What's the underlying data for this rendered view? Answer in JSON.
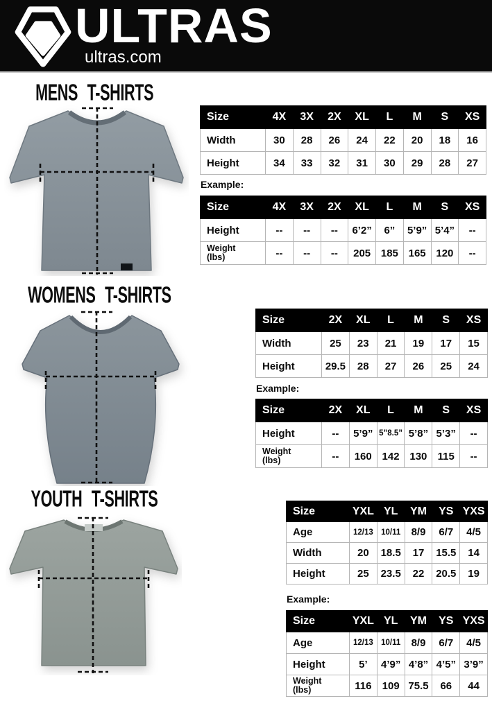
{
  "header": {
    "brand": "ULTRAS",
    "site": "ultras.com",
    "logo_icon": "pentagon-crest-icon"
  },
  "sections": [
    {
      "id": "mens",
      "title": "MENS T-SHIRTS",
      "example_label": "Example:",
      "size_table": {
        "headers": [
          "Size",
          "4X",
          "3X",
          "2X",
          "XL",
          "L",
          "M",
          "S",
          "XS"
        ],
        "rows": [
          [
            "Width",
            "30",
            "28",
            "26",
            "24",
            "22",
            "20",
            "18",
            "16"
          ],
          [
            "Height",
            "34",
            "33",
            "32",
            "31",
            "30",
            "29",
            "28",
            "27"
          ]
        ]
      },
      "example_table": {
        "headers": [
          "Size",
          "4X",
          "3X",
          "2X",
          "XL",
          "L",
          "M",
          "S",
          "XS"
        ],
        "rows": [
          [
            "Height",
            "--",
            "--",
            "--",
            "6’2”",
            "6”",
            "5’9”",
            "5’4”",
            "--"
          ],
          [
            "Weight\n(lbs)",
            "--",
            "--",
            "--",
            "205",
            "185",
            "165",
            "120",
            "--"
          ]
        ]
      }
    },
    {
      "id": "womens",
      "title": "WOMENS T-SHIRTS",
      "example_label": "Example:",
      "size_table": {
        "headers": [
          "Size",
          "2X",
          "XL",
          "L",
          "M",
          "S",
          "XS"
        ],
        "rows": [
          [
            "Width",
            "25",
            "23",
            "21",
            "19",
            "17",
            "15"
          ],
          [
            "Height",
            "29.5",
            "28",
            "27",
            "26",
            "25",
            "24"
          ]
        ]
      },
      "example_table": {
        "headers": [
          "Size",
          "2X",
          "XL",
          "L",
          "M",
          "S",
          "XS"
        ],
        "rows": [
          [
            "Height",
            "--",
            "5’9”",
            "5”8.5”",
            "5’8”",
            "5’3”",
            "--"
          ],
          [
            "Weight\n(lbs)",
            "--",
            "160",
            "142",
            "130",
            "115",
            "--"
          ]
        ]
      }
    },
    {
      "id": "youth",
      "title": "YOUTH T-SHIRTS",
      "example_label": "Example:",
      "size_table": {
        "headers": [
          "Size",
          "YXL",
          "YL",
          "YM",
          "YS",
          "YXS"
        ],
        "rows": [
          [
            "Age",
            "12/13",
            "10/11",
            "8/9",
            "6/7",
            "4/5"
          ],
          [
            "Width",
            "20",
            "18.5",
            "17",
            "15.5",
            "14"
          ],
          [
            "Height",
            "25",
            "23.5",
            "22",
            "20.5",
            "19"
          ]
        ]
      },
      "example_table": {
        "headers": [
          "Size",
          "YXL",
          "YL",
          "YM",
          "YS",
          "YXS"
        ],
        "rows": [
          [
            "Age",
            "12/13",
            "10/11",
            "8/9",
            "6/7",
            "4/5"
          ],
          [
            "Height",
            "5’",
            "4’9”",
            "4’8”",
            "4’5”",
            "3’9”"
          ],
          [
            "Weight\n(lbs)",
            "116",
            "109",
            "75.5",
            "66",
            "44"
          ]
        ]
      }
    }
  ]
}
